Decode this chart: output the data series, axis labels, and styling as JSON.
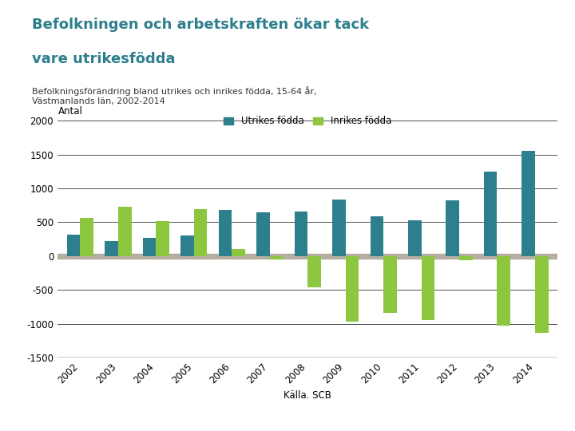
{
  "title_line1": "Befolkningen och arbetskraften ökar tack",
  "title_line2": "vare utrikesfödda",
  "subtitle": "Befolkningsförändring bland utrikes och inrikes födda, 15-64 år,\nVästmanlands län, 2002-2014",
  "ylabel": "Antal",
  "xlabel": "Källa. SCB",
  "years": [
    2002,
    2003,
    2004,
    2005,
    2006,
    2007,
    2008,
    2009,
    2010,
    2011,
    2012,
    2013,
    2014
  ],
  "utrikes_fodda": [
    320,
    220,
    265,
    300,
    680,
    650,
    655,
    830,
    590,
    530,
    820,
    1250,
    1560
  ],
  "inrikes_fodda": [
    560,
    730,
    520,
    700,
    100,
    -50,
    -460,
    -970,
    -840,
    -940,
    -65,
    -1030,
    -1130
  ],
  "utrikes_color": "#2E7F8E",
  "inrikes_color": "#8DC63F",
  "ylim": [
    -1500,
    2000
  ],
  "yticks": [
    -1500,
    -1000,
    -500,
    0,
    500,
    1000,
    1500,
    2000
  ],
  "legend_labels": [
    "Utrikes födda",
    "Inrikes födda"
  ],
  "background_color": "#ffffff",
  "title_color": "#2E7F8E",
  "zero_line_color": "#b0a898",
  "grid_color": "#333333",
  "bar_width": 0.35
}
